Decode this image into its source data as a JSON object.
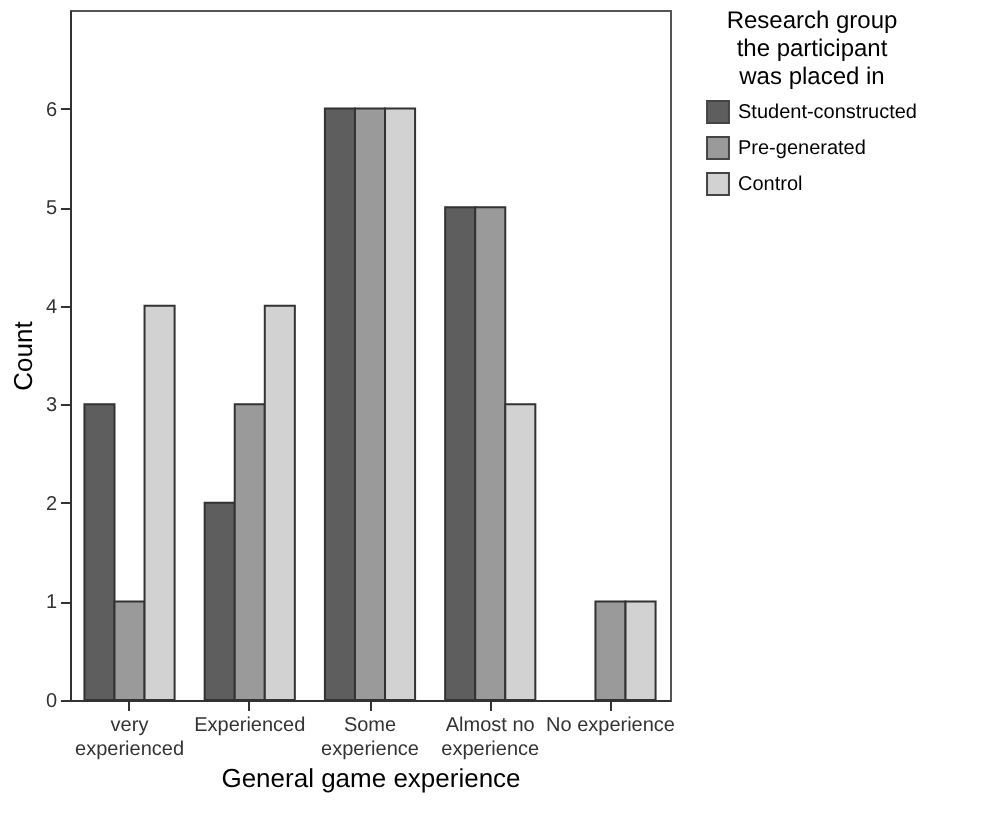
{
  "chart_data": {
    "type": "bar",
    "xlabel": "General game experience",
    "ylabel": "Count",
    "legend_title": "Research group the participant was placed in",
    "legend": "top right",
    "grid": false,
    "categories": [
      "very experienced",
      "Experienced",
      "Some experience",
      "Almost no experience",
      "No experience"
    ],
    "series": [
      {
        "name": "Student-constructed",
        "color": "#5e5e5e",
        "values": [
          3,
          2,
          6,
          5,
          null
        ]
      },
      {
        "name": "Pre-generated",
        "color": "#9a9a9a",
        "values": [
          1,
          3,
          6,
          5,
          1
        ]
      },
      {
        "name": "Control",
        "color": "#d2d2d2",
        "values": [
          4,
          4,
          6,
          3,
          1
        ]
      }
    ],
    "ylim": [
      0,
      7
    ],
    "yticks": [
      0,
      1,
      2,
      3,
      4,
      5,
      6
    ]
  }
}
